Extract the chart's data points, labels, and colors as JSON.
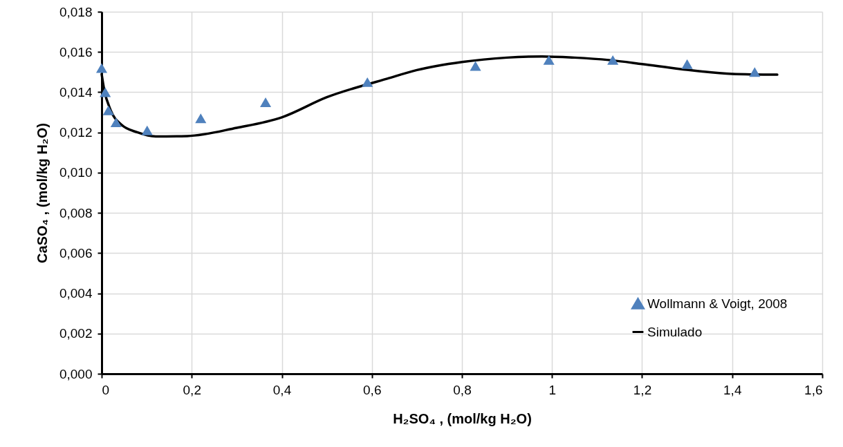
{
  "chart_data": {
    "type": "scatter",
    "xlabel": "H₂SO₄ , (mol/kg H₂O)",
    "ylabel": "CaSO₄ , (mol/kg H₂O)",
    "xlim": [
      0,
      1.6
    ],
    "xticks": [
      0,
      {
        "value": 0.2,
        "label": "0,2"
      },
      {
        "value": 0.4,
        "label": "0,4"
      },
      {
        "value": 0.6,
        "label": "0,6"
      },
      {
        "value": 0.8,
        "label": "0,8"
      },
      1,
      {
        "value": 1.2,
        "label": "1,2"
      },
      {
        "value": 1.4,
        "label": "1,4"
      },
      {
        "value": 1.6,
        "label": "1,6"
      }
    ],
    "ylim": [
      0,
      0.018
    ],
    "yticks": [
      {
        "value": 0,
        "label": "0,000"
      },
      {
        "value": 0.002,
        "label": "0,002"
      },
      {
        "value": 0.004,
        "label": "0,004"
      },
      {
        "value": 0.006,
        "label": "0,006"
      },
      {
        "value": 0.008,
        "label": "0,008"
      },
      {
        "value": 0.01,
        "label": "0,010"
      },
      {
        "value": 0.012,
        "label": "0,012"
      },
      {
        "value": 0.014,
        "label": "0,014"
      },
      {
        "value": 0.016,
        "label": "0,016"
      },
      {
        "value": 0.018,
        "label": "0,018"
      }
    ],
    "grid": true,
    "legend": "bottom right",
    "series": [
      {
        "name": "Wollmann & Voigt, 2008",
        "marker": "triangle",
        "color": "#4f81bd",
        "x": [
          0,
          0.008,
          0.015,
          0.032,
          0.101,
          0.22,
          0.364,
          0.59,
          0.83,
          0.993,
          1.135,
          1.3,
          1.45
        ],
        "values": [
          0.0152,
          0.014,
          0.0131,
          0.0125,
          0.0121,
          0.0127,
          0.0135,
          0.0145,
          0.0153,
          0.0156,
          0.0156,
          0.0154,
          0.015
        ]
      },
      {
        "name": "Simulado",
        "type": "line",
        "color": "#000000",
        "x": [
          0,
          0.005,
          0.02,
          0.043,
          0.08,
          0.12,
          0.19,
          0.3,
          0.4,
          0.5,
          0.634,
          0.7,
          0.8,
          0.9,
          0.978,
          1.05,
          1.126,
          1.2,
          1.285,
          1.4,
          1.5
        ],
        "values": [
          0.0149,
          0.0142,
          0.0131,
          0.0124,
          0.012,
          0.0118,
          0.01182,
          0.01223,
          0.01275,
          0.01375,
          0.01467,
          0.0151,
          0.0155,
          0.01572,
          0.01578,
          0.01572,
          0.0156,
          0.0154,
          0.01515,
          0.01491,
          0.01487
        ]
      }
    ]
  }
}
